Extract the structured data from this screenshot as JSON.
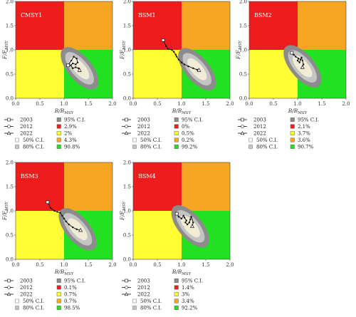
{
  "axis_labels": {
    "x_main": "B/B",
    "x_sub": "MSY",
    "y_main": "F/F",
    "y_sub": "MSY"
  },
  "colors": {
    "red": "#ee1c1c",
    "orange": "#f7a623",
    "yellow": "#ffff33",
    "green": "#22e022",
    "ci95": "#8c8c8c",
    "ci80": "#c4c4c4",
    "ci50": "#f1ecd6"
  },
  "chart_data": [
    {
      "type": "scatter",
      "title": "CMSY1",
      "xlim": [
        0,
        2
      ],
      "ylim": [
        0,
        2
      ],
      "xticks": [
        "0.0",
        "0.5",
        "1.0",
        "1.5",
        "2.0"
      ],
      "yticks": [
        "0.0",
        "0.5",
        "1.0",
        "1.5",
        "2.0"
      ],
      "trajectory": [
        [
          1.08,
          0.68
        ],
        [
          1.15,
          0.78
        ],
        [
          1.2,
          0.86
        ],
        [
          1.26,
          0.82
        ],
        [
          1.28,
          0.74
        ],
        [
          1.24,
          0.7
        ],
        [
          1.18,
          0.72
        ],
        [
          1.14,
          0.68
        ],
        [
          1.18,
          0.62
        ],
        [
          1.24,
          0.64
        ],
        [
          1.3,
          0.62
        ],
        [
          1.32,
          0.58
        ]
      ],
      "ellipse_center": [
        1.32,
        0.62
      ],
      "legend_left": [
        "2003",
        "2012",
        "2022",
        "50% C.I.",
        "80% C.I."
      ],
      "legend_right": [
        "95% C.I.",
        "2.9%",
        "2%",
        "4.3%",
        "90.8%"
      ]
    },
    {
      "type": "scatter",
      "title": "BSM1",
      "xlim": [
        0,
        2
      ],
      "ylim": [
        0,
        2
      ],
      "xticks": [
        "0.0",
        "0.5",
        "1.0",
        "1.5",
        "2.0"
      ],
      "yticks": [
        "0.0",
        "0.5",
        "1.0",
        "1.5",
        "2.0"
      ],
      "trajectory": [
        [
          0.62,
          1.2
        ],
        [
          0.68,
          1.08
        ],
        [
          0.72,
          1.02
        ],
        [
          0.8,
          1.0
        ],
        [
          0.84,
          0.96
        ],
        [
          0.88,
          0.9
        ],
        [
          0.9,
          0.86
        ],
        [
          0.94,
          0.8
        ],
        [
          1.0,
          0.74
        ],
        [
          1.06,
          0.7
        ],
        [
          1.14,
          0.66
        ],
        [
          1.24,
          0.62
        ],
        [
          1.32,
          0.59
        ],
        [
          1.36,
          0.58
        ]
      ],
      "ellipse_center": [
        1.32,
        0.6
      ],
      "legend_left": [
        "2003",
        "2012",
        "2022",
        "50% C.I.",
        "80% C.I."
      ],
      "legend_right": [
        "95% C.I.",
        "0%",
        "0.5%",
        "0.2%",
        "99.2%"
      ]
    },
    {
      "type": "scatter",
      "title": "BSM2",
      "xlim": [
        0,
        2
      ],
      "ylim": [
        0,
        2
      ],
      "xticks": [
        "0.0",
        "0.5",
        "1.0",
        "1.5",
        "2.0"
      ],
      "yticks": [
        "0.0",
        "0.5",
        "1.0",
        "1.5",
        "2.0"
      ],
      "trajectory": [
        [
          0.88,
          0.94
        ],
        [
          0.92,
          0.9
        ],
        [
          0.96,
          0.86
        ],
        [
          1.02,
          0.82
        ],
        [
          1.0,
          0.78
        ],
        [
          1.04,
          0.74
        ],
        [
          1.06,
          0.8
        ],
        [
          1.08,
          0.84
        ],
        [
          1.1,
          0.78
        ],
        [
          1.12,
          0.7
        ],
        [
          1.1,
          0.64
        ]
      ],
      "ellipse_center": [
        1.1,
        0.66
      ],
      "legend_left": [
        "2003",
        "2012",
        "2022",
        "50% C.I.",
        "80% C.I."
      ],
      "legend_right": [
        "95% C.I.",
        "2.1%",
        "3.7%",
        "3.6%",
        "90.7%"
      ]
    },
    {
      "type": "scatter",
      "title": "BSM3",
      "xlim": [
        0,
        2
      ],
      "ylim": [
        0,
        2
      ],
      "xticks": [
        "0.0",
        "0.5",
        "1.0",
        "1.5",
        "2.0"
      ],
      "yticks": [
        "0.0",
        "0.5",
        "1.0",
        "1.5",
        "2.0"
      ],
      "trajectory": [
        [
          0.66,
          1.18
        ],
        [
          0.72,
          1.06
        ],
        [
          0.8,
          1.0
        ],
        [
          0.86,
          0.98
        ],
        [
          0.92,
          0.96
        ],
        [
          0.96,
          0.9
        ],
        [
          1.0,
          0.84
        ],
        [
          1.04,
          0.78
        ],
        [
          1.1,
          0.72
        ],
        [
          1.18,
          0.66
        ],
        [
          1.26,
          0.62
        ],
        [
          1.34,
          0.6
        ]
      ],
      "ellipse_center": [
        1.28,
        0.62
      ],
      "legend_left": [
        "2003",
        "2012",
        "2022",
        "50% C.I.",
        "80% C.I."
      ],
      "legend_right": [
        "95% C.I.",
        "0.1%",
        "0.7%",
        "0.7%",
        "98.5%"
      ]
    },
    {
      "type": "scatter",
      "title": "BSM4",
      "xlim": [
        0,
        2
      ],
      "ylim": [
        0,
        2
      ],
      "xticks": [
        "0.0",
        "0.5",
        "1.0",
        "1.5",
        "2.0"
      ],
      "yticks": [
        "0.0",
        "0.5",
        "1.0",
        "1.5",
        "2.0"
      ],
      "trajectory": [
        [
          0.9,
          0.94
        ],
        [
          0.94,
          0.88
        ],
        [
          1.0,
          0.84
        ],
        [
          1.04,
          0.9
        ],
        [
          1.06,
          0.86
        ],
        [
          1.1,
          0.8
        ],
        [
          1.08,
          0.76
        ],
        [
          1.12,
          0.72
        ],
        [
          1.16,
          0.76
        ],
        [
          1.18,
          0.82
        ],
        [
          1.2,
          0.88
        ],
        [
          1.24,
          0.76
        ],
        [
          1.22,
          0.68
        ]
      ],
      "ellipse_center": [
        1.18,
        0.68
      ],
      "legend_left": [
        "2003",
        "2012",
        "2022",
        "50% C.I.",
        "80% C.I."
      ],
      "legend_right": [
        "95% C.I.",
        "1.4%",
        "3%",
        "3.4%",
        "92.2%"
      ]
    }
  ]
}
